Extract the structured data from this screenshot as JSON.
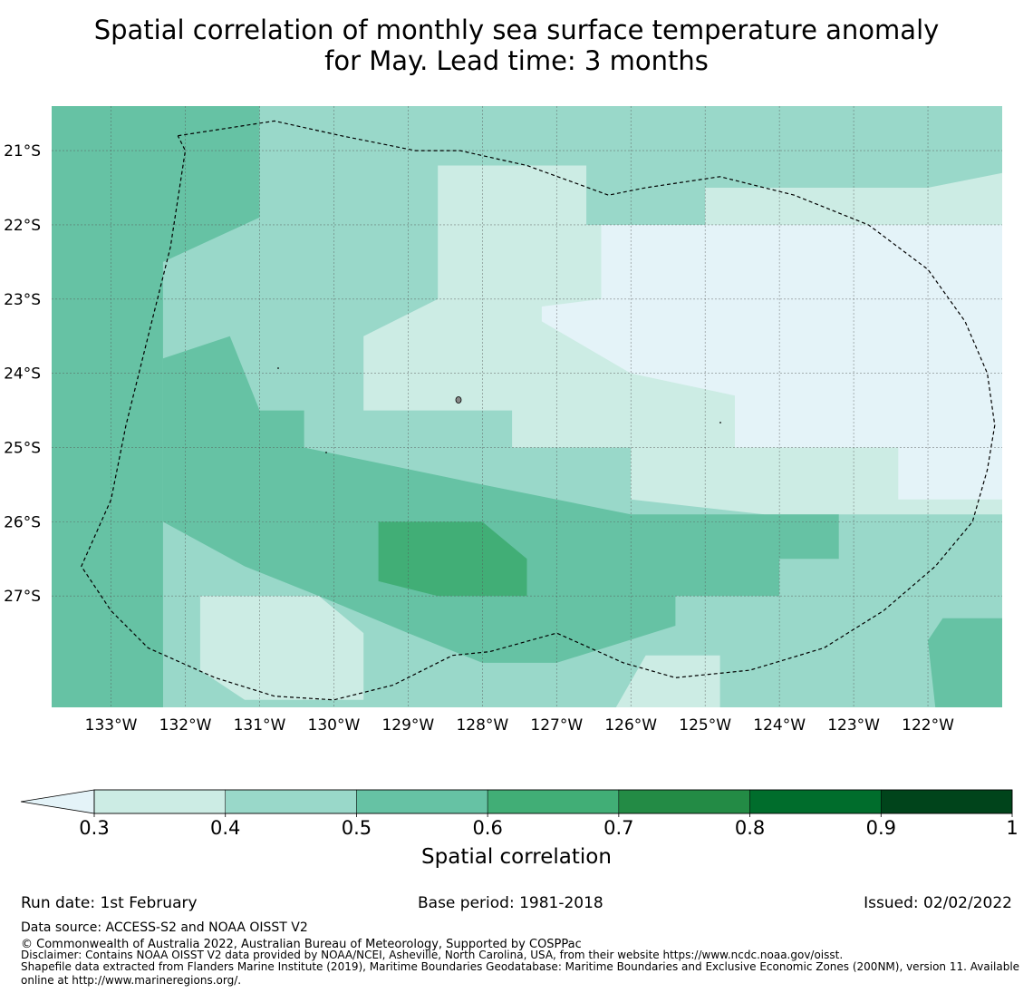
{
  "title": {
    "line1": "Spatial correlation of monthly sea surface temperature anomaly",
    "line2": "for May. Lead time: 3 months"
  },
  "map": {
    "lon_range": [
      -133.8,
      -121.0
    ],
    "lat_range": [
      -20.4,
      -28.5
    ],
    "lon_ticks": [
      {
        "value": -133,
        "label": "133°W"
      },
      {
        "value": -132,
        "label": "132°W"
      },
      {
        "value": -131,
        "label": "131°W"
      },
      {
        "value": -130,
        "label": "130°W"
      },
      {
        "value": -129,
        "label": "129°W"
      },
      {
        "value": -128,
        "label": "128°W"
      },
      {
        "value": -127,
        "label": "127°W"
      },
      {
        "value": -126,
        "label": "126°W"
      },
      {
        "value": -125,
        "label": "125°W"
      },
      {
        "value": -124,
        "label": "124°W"
      },
      {
        "value": -123,
        "label": "123°W"
      },
      {
        "value": -122,
        "label": "122°W"
      }
    ],
    "lat_ticks": [
      {
        "value": -21,
        "label": "21°S"
      },
      {
        "value": -22,
        "label": "22°S"
      },
      {
        "value": -23,
        "label": "23°S"
      },
      {
        "value": -24,
        "label": "24°S"
      },
      {
        "value": -25,
        "label": "25°S"
      },
      {
        "value": -26,
        "label": "26°S"
      },
      {
        "value": -27,
        "label": "27°S"
      }
    ],
    "regions": [
      {
        "level": 1,
        "polygon": [
          [
            -133.8,
            -20.4
          ],
          [
            -121.0,
            -20.4
          ],
          [
            -121.0,
            -28.5
          ],
          [
            -133.8,
            -28.5
          ]
        ]
      },
      {
        "level": 2,
        "polygon": [
          [
            -133.8,
            -20.4
          ],
          [
            -131.0,
            -20.4
          ],
          [
            -131.0,
            -21.9
          ],
          [
            -132.3,
            -22.5
          ],
          [
            -132.3,
            -28.5
          ],
          [
            -133.8,
            -28.5
          ]
        ]
      },
      {
        "level": 0,
        "polygon": [
          [
            -128.6,
            -21.2
          ],
          [
            -126.6,
            -21.2
          ],
          [
            -126.6,
            -22.0
          ],
          [
            -125.0,
            -22.0
          ],
          [
            -125.0,
            -21.5
          ],
          [
            -122.0,
            -21.5
          ],
          [
            -121.0,
            -21.3
          ],
          [
            -121.0,
            -25.0
          ],
          [
            -121.0,
            -25.9
          ],
          [
            -124.2,
            -25.9
          ],
          [
            -126.0,
            -25.7
          ],
          [
            -126.0,
            -25.0
          ],
          [
            -127.6,
            -25.0
          ],
          [
            -127.6,
            -24.5
          ],
          [
            -129.6,
            -24.5
          ],
          [
            -129.6,
            -23.5
          ],
          [
            -128.6,
            -23.0
          ]
        ]
      },
      {
        "level": -1,
        "polygon": [
          [
            -126.4,
            -22.0
          ],
          [
            -121.0,
            -22.0
          ],
          [
            -121.0,
            -25.7
          ],
          [
            -122.4,
            -25.7
          ],
          [
            -122.4,
            -25.0
          ],
          [
            -124.6,
            -25.0
          ],
          [
            -124.6,
            -24.3
          ],
          [
            -126.0,
            -24.0
          ],
          [
            -127.2,
            -23.3
          ],
          [
            -127.2,
            -23.1
          ],
          [
            -126.4,
            -23.0
          ]
        ]
      },
      {
        "level": 2,
        "polygon": [
          [
            -132.3,
            -23.8
          ],
          [
            -131.4,
            -23.5
          ],
          [
            -131.0,
            -24.5
          ],
          [
            -130.4,
            -24.5
          ],
          [
            -130.4,
            -25.0
          ],
          [
            -128.0,
            -25.5
          ],
          [
            -126.0,
            -25.9
          ],
          [
            -123.2,
            -25.9
          ],
          [
            -123.2,
            -26.5
          ],
          [
            -124.0,
            -26.5
          ],
          [
            -124.0,
            -27.0
          ],
          [
            -125.4,
            -27.0
          ],
          [
            -125.4,
            -27.4
          ],
          [
            -127.0,
            -27.9
          ],
          [
            -128.0,
            -27.9
          ],
          [
            -129.0,
            -27.5
          ],
          [
            -130.2,
            -27.0
          ],
          [
            -131.2,
            -26.6
          ],
          [
            -132.3,
            -26.0
          ]
        ]
      },
      {
        "level": 3,
        "polygon": [
          [
            -129.4,
            -26.0
          ],
          [
            -128.0,
            -26.0
          ],
          [
            -127.4,
            -26.5
          ],
          [
            -127.4,
            -27.0
          ],
          [
            -128.6,
            -27.0
          ],
          [
            -129.4,
            -26.8
          ]
        ]
      },
      {
        "level": 0,
        "polygon": [
          [
            -131.8,
            -27.0
          ],
          [
            -130.2,
            -27.0
          ],
          [
            -129.6,
            -27.5
          ],
          [
            -129.6,
            -28.4
          ],
          [
            -131.2,
            -28.4
          ],
          [
            -131.8,
            -28.0
          ]
        ]
      },
      {
        "level": 0,
        "polygon": [
          [
            -125.8,
            -27.8
          ],
          [
            -124.8,
            -27.8
          ],
          [
            -124.8,
            -28.5
          ],
          [
            -126.2,
            -28.5
          ]
        ]
      },
      {
        "level": 2,
        "polygon": [
          [
            -121.8,
            -27.3
          ],
          [
            -121.0,
            -27.3
          ],
          [
            -121.0,
            -28.5
          ],
          [
            -121.9,
            -28.5
          ],
          [
            -122.0,
            -27.6
          ]
        ]
      },
      {
        "level": 2,
        "polygon": [
          [
            -133.8,
            -27.8
          ],
          [
            -132.3,
            -27.8
          ],
          [
            -132.3,
            -28.5
          ],
          [
            -133.8,
            -28.5
          ]
        ]
      }
    ],
    "eez_outline": [
      [
        -132.1,
        -20.8
      ],
      [
        -130.8,
        -20.6
      ],
      [
        -129.9,
        -20.8
      ],
      [
        -128.9,
        -21.0
      ],
      [
        -128.3,
        -21.0
      ],
      [
        -127.4,
        -21.2
      ],
      [
        -126.3,
        -21.6
      ],
      [
        -125.8,
        -21.5
      ],
      [
        -124.8,
        -21.35
      ],
      [
        -123.8,
        -21.6
      ],
      [
        -122.8,
        -22.0
      ],
      [
        -122.0,
        -22.6
      ],
      [
        -121.5,
        -23.3
      ],
      [
        -121.2,
        -24.0
      ],
      [
        -121.1,
        -24.7
      ],
      [
        -121.2,
        -25.3
      ],
      [
        -121.4,
        -26.0
      ],
      [
        -121.9,
        -26.6
      ],
      [
        -122.6,
        -27.2
      ],
      [
        -123.4,
        -27.7
      ],
      [
        -124.4,
        -28.0
      ],
      [
        -125.4,
        -28.1
      ],
      [
        -126.1,
        -27.9
      ],
      [
        -127.0,
        -27.5
      ],
      [
        -127.9,
        -27.75
      ],
      [
        -128.4,
        -27.8
      ],
      [
        -129.2,
        -28.2
      ],
      [
        -130.0,
        -28.4
      ],
      [
        -130.8,
        -28.35
      ],
      [
        -131.6,
        -28.1
      ],
      [
        -132.5,
        -27.7
      ],
      [
        -133.0,
        -27.2
      ],
      [
        -133.4,
        -26.6
      ],
      [
        -133.0,
        -25.7
      ],
      [
        -132.8,
        -24.7
      ],
      [
        -132.5,
        -23.5
      ],
      [
        -132.2,
        -22.3
      ],
      [
        -132.0,
        -21.0
      ],
      [
        -132.1,
        -20.8
      ]
    ]
  },
  "colorbar": {
    "bounds": [
      0.3,
      0.4,
      0.5,
      0.6,
      0.7,
      0.8,
      0.9,
      1.0
    ],
    "tick_labels": [
      "0.3",
      "0.4",
      "0.5",
      "0.6",
      "0.7",
      "0.8",
      "0.9",
      "1"
    ],
    "under_color": "#e4f3f8",
    "colors": [
      "#ccece4",
      "#99d8c9",
      "#66c2a4",
      "#41ae76",
      "#238b45",
      "#006d2c",
      "#00441b"
    ],
    "label": "Spatial correlation"
  },
  "footer": {
    "run_date": "Run date: 1st February",
    "base_period": "Base period: 1981-2018",
    "issued": "Issued: 02/02/2022",
    "data_source": "Data source: ACCESS-S2 and NOAA OISST V2",
    "copyright": "© Commonwealth of Australia 2022, Australian Bureau of Meteorology, Supported by COSPPac",
    "disclaimer": "Disclaimer: Contains NOAA OISST V2 data provided by NOAA/NCEI, Asheville, North Carolina, USA, from their website https://www.ncdc.noaa.gov/oisst.",
    "shapefile_line1": "Shapefile data extracted from Flanders Marine Institute (2019), Maritime Boundaries Geodatabase: Maritime Boundaries and Exclusive Economic Zones (200NM), version 11. Available",
    "shapefile_line2": "online at http://www.marineregions.org/."
  }
}
